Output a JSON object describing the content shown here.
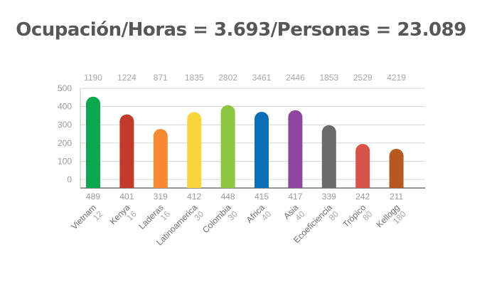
{
  "title": "Ocupación/Horas = 3.693/Personas = 23.089",
  "chart_data": {
    "type": "bar",
    "title": "Ocupación/Horas = 3.693/Personas = 23.089",
    "ylim": [
      0,
      500
    ],
    "yticks": [
      0,
      100,
      200,
      300,
      400,
      500
    ],
    "grid": true,
    "categories": [
      "Vietnam",
      "Kenya",
      "Laderas",
      "Latinoamerica",
      "Colombia",
      "Africa",
      "Asia",
      "Ecoeficiencia",
      "Trópico",
      "Kellogg"
    ],
    "values": [
      454,
      357,
      277,
      370,
      408,
      371,
      380,
      298,
      195,
      168
    ],
    "bottom_labels": [
      "489",
      "401",
      "319",
      "412",
      "448",
      "415",
      "417",
      "339",
      "242",
      "211"
    ],
    "top_labels": [
      "1190",
      "1224",
      "871",
      "1835",
      "2802",
      "3461",
      "2446",
      "1853",
      "2529",
      "4219"
    ],
    "category_sublabels": [
      "12",
      "16",
      "16",
      "30",
      "30",
      "40",
      "40",
      "80",
      "80",
      "180"
    ],
    "colors": [
      "#0aa84f",
      "#c13a2a",
      "#f58a2e",
      "#f7d53b",
      "#8dc63f",
      "#0a6fb6",
      "#8e44a0",
      "#6a6a6b",
      "#d9534a",
      "#b5591f"
    ]
  }
}
